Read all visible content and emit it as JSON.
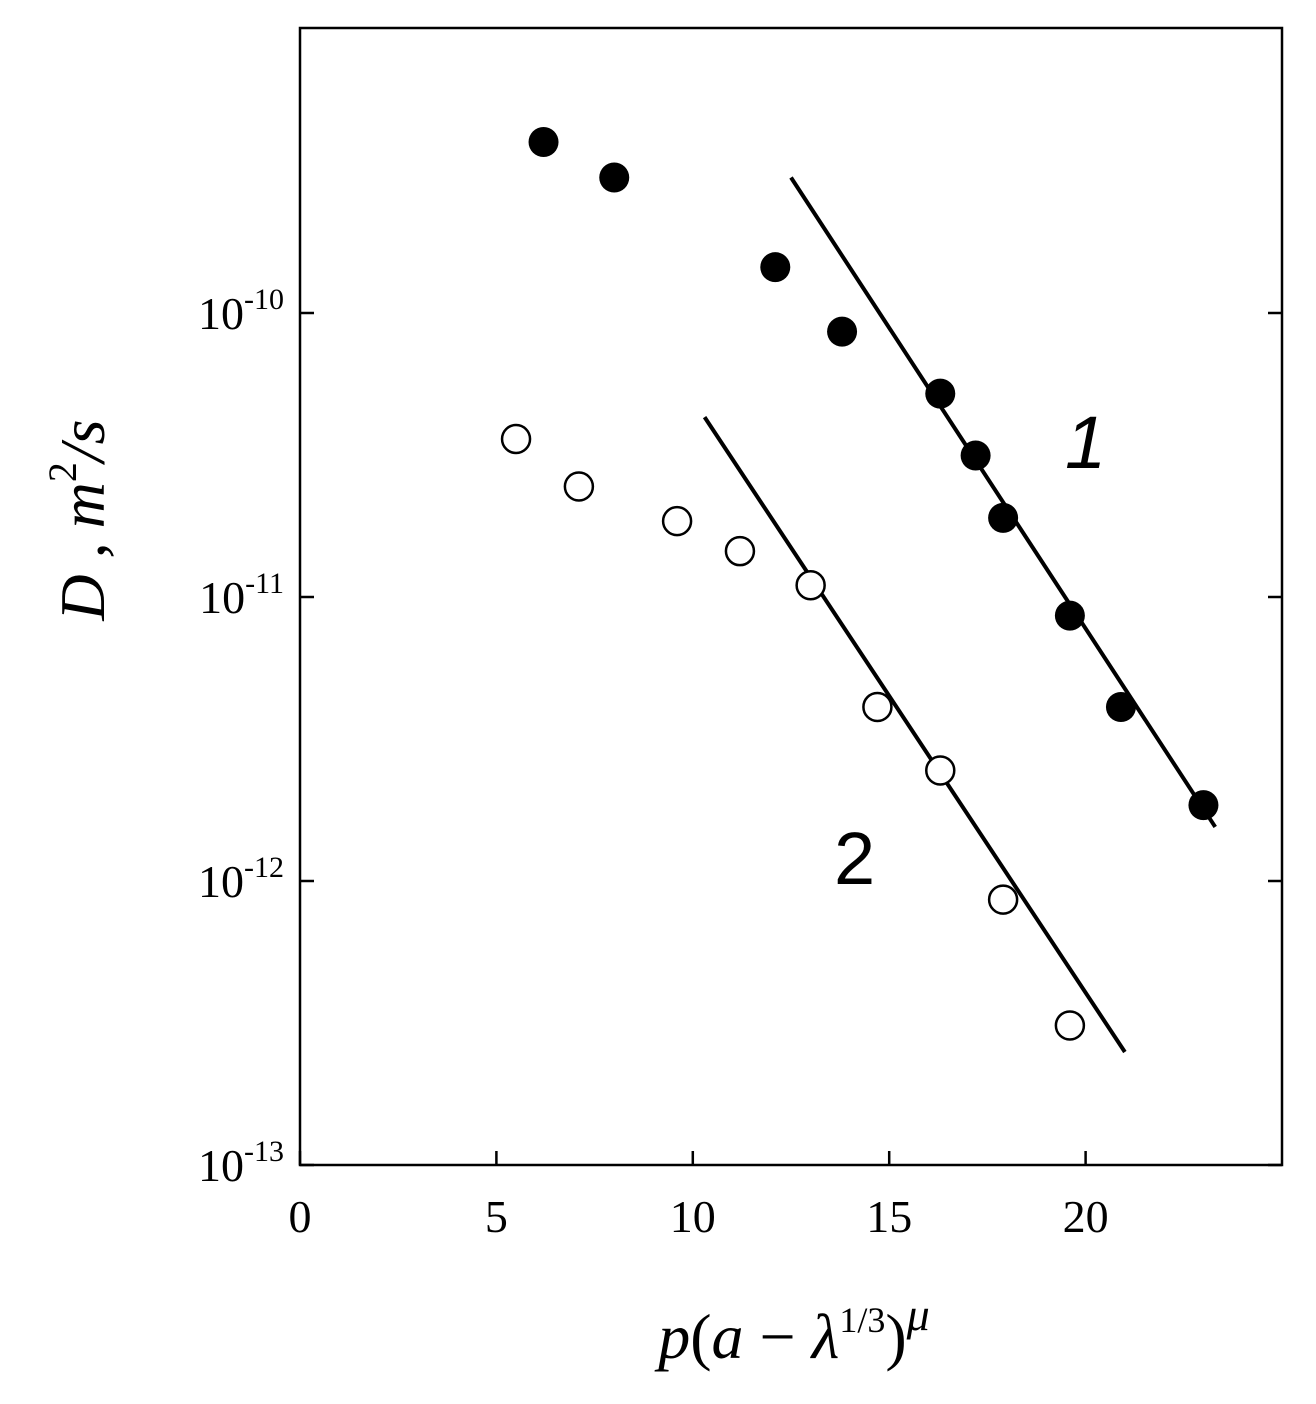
{
  "chart_data": {
    "type": "scatter",
    "title": "",
    "xlabel": {
      "p": "p",
      "open": "(",
      "a": "a",
      "minus": " − ",
      "lambda": "λ",
      "power": "1/3",
      "close": ")",
      "mu": "μ"
    },
    "ylabel": {
      "D": "D",
      "comma": " ,",
      "m": "m",
      "sq": "2",
      "per_s": "/s"
    },
    "xlim": [
      0,
      25
    ],
    "ylim": [
      1e-13,
      1e-09
    ],
    "yscale": "log",
    "grid": false,
    "x_ticks": [
      {
        "value": 0,
        "label": "0"
      },
      {
        "value": 5,
        "label": "5"
      },
      {
        "value": 10,
        "label": "10"
      },
      {
        "value": 15,
        "label": "15"
      },
      {
        "value": 20,
        "label": "20"
      }
    ],
    "y_ticks": [
      {
        "value": 1e-13,
        "base": "10",
        "exp": "-13"
      },
      {
        "value": 1e-12,
        "base": "10",
        "exp": "-12"
      },
      {
        "value": 1e-11,
        "base": "10",
        "exp": "-11"
      },
      {
        "value": 1e-10,
        "base": "10",
        "exp": "-10"
      }
    ],
    "series": [
      {
        "label": "1",
        "marker": "filled-circle",
        "color": "#000000",
        "points": [
          {
            "x": 6.2,
            "y": 4e-10
          },
          {
            "x": 8.0,
            "y": 3e-10
          },
          {
            "x": 12.1,
            "y": 1.45e-10
          },
          {
            "x": 13.8,
            "y": 8.6e-11
          },
          {
            "x": 16.3,
            "y": 5.2e-11
          },
          {
            "x": 17.2,
            "y": 3.15e-11
          },
          {
            "x": 17.9,
            "y": 1.9e-11
          },
          {
            "x": 19.6,
            "y": 8.6e-12
          },
          {
            "x": 20.9,
            "y": 4.1e-12
          },
          {
            "x": 23.0,
            "y": 1.85e-12
          }
        ],
        "fit_line": [
          {
            "x": 12.5,
            "y": 3e-10
          },
          {
            "x": 23.3,
            "y": 1.55e-12
          }
        ]
      },
      {
        "label": "2",
        "marker": "open-circle",
        "color": "#000000",
        "points": [
          {
            "x": 5.5,
            "y": 3.6e-11
          },
          {
            "x": 7.1,
            "y": 2.45e-11
          },
          {
            "x": 9.6,
            "y": 1.85e-11
          },
          {
            "x": 11.2,
            "y": 1.45e-11
          },
          {
            "x": 13.0,
            "y": 1.1e-11
          },
          {
            "x": 14.7,
            "y": 4.1e-12
          },
          {
            "x": 16.3,
            "y": 2.45e-12
          },
          {
            "x": 17.9,
            "y": 8.6e-13
          },
          {
            "x": 19.6,
            "y": 3.1e-13
          }
        ],
        "fit_line": [
          {
            "x": 10.3,
            "y": 4.3e-11
          },
          {
            "x": 21.0,
            "y": 2.5e-13
          }
        ]
      }
    ]
  }
}
